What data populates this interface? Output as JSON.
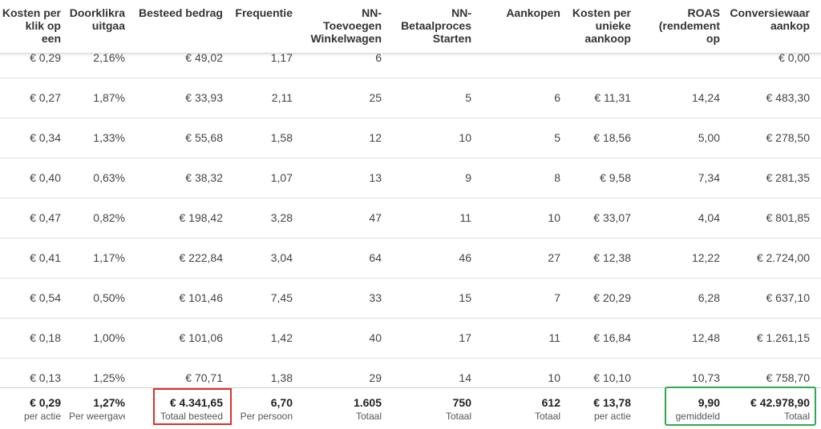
{
  "headers": [
    [
      "Kosten per",
      "klik op",
      "een"
    ],
    [
      "Doorklikra",
      "uitgaa"
    ],
    [
      "Besteed bedrag"
    ],
    [
      "Frequentie"
    ],
    [
      "NN-",
      "Toevoegen",
      "Winkelwagen"
    ],
    [
      "NN-",
      "Betaalproces",
      "Starten"
    ],
    [
      "Aankopen"
    ],
    [
      "Kosten per",
      "unieke",
      "aankoop"
    ],
    [
      "ROAS",
      "(rendement",
      "op"
    ],
    [
      "Conversiewaar",
      "aankop"
    ]
  ],
  "partial_row": [
    "€ 0,29",
    "2,16%",
    "€ 49,02",
    "1,17",
    "6",
    "",
    "",
    "",
    "",
    "€ 0,00"
  ],
  "rows": [
    [
      "€ 0,27",
      "1,87%",
      "€ 33,93",
      "2,11",
      "25",
      "5",
      "6",
      "€ 11,31",
      "14,24",
      "€ 483,30"
    ],
    [
      "€ 0,34",
      "1,33%",
      "€ 55,68",
      "1,58",
      "12",
      "10",
      "5",
      "€ 18,56",
      "5,00",
      "€ 278,50"
    ],
    [
      "€ 0,40",
      "0,63%",
      "€ 38,32",
      "1,07",
      "13",
      "9",
      "8",
      "€ 9,58",
      "7,34",
      "€ 281,35"
    ],
    [
      "€ 0,47",
      "0,82%",
      "€ 198,42",
      "3,28",
      "47",
      "11",
      "10",
      "€ 33,07",
      "4,04",
      "€ 801,85"
    ],
    [
      "€ 0,41",
      "1,17%",
      "€ 222,84",
      "3,04",
      "64",
      "46",
      "27",
      "€ 12,38",
      "12,22",
      "€ 2.724,00"
    ],
    [
      "€ 0,54",
      "0,50%",
      "€ 101,46",
      "7,45",
      "33",
      "15",
      "7",
      "€ 20,29",
      "6,28",
      "€ 637,10"
    ],
    [
      "€ 0,18",
      "1,00%",
      "€ 101,06",
      "1,42",
      "40",
      "17",
      "11",
      "€ 16,84",
      "12,48",
      "€ 1.261,15"
    ],
    [
      "€ 0,13",
      "1,25%",
      "€ 70,71",
      "1,38",
      "29",
      "14",
      "10",
      "€ 10,10",
      "10,73",
      "€ 758,70"
    ]
  ],
  "totals": [
    {
      "value": "€ 0,29",
      "label": "per actie"
    },
    {
      "value": "1,27%",
      "label": "Per weergave"
    },
    {
      "value": "€ 4.341,65",
      "label": "Totaal besteed"
    },
    {
      "value": "6,70",
      "label": "Per persoon"
    },
    {
      "value": "1.605",
      "label": "Totaal"
    },
    {
      "value": "750",
      "label": "Totaal"
    },
    {
      "value": "612",
      "label": "Totaal"
    },
    {
      "value": "€ 13,78",
      "label": "per actie"
    },
    {
      "value": "9,90",
      "label": "gemiddeld"
    },
    {
      "value": "€ 42.978,90",
      "label": "Totaal"
    }
  ],
  "highlights": {
    "red_color": "#d9302c",
    "green_color": "#2eaa4a"
  }
}
